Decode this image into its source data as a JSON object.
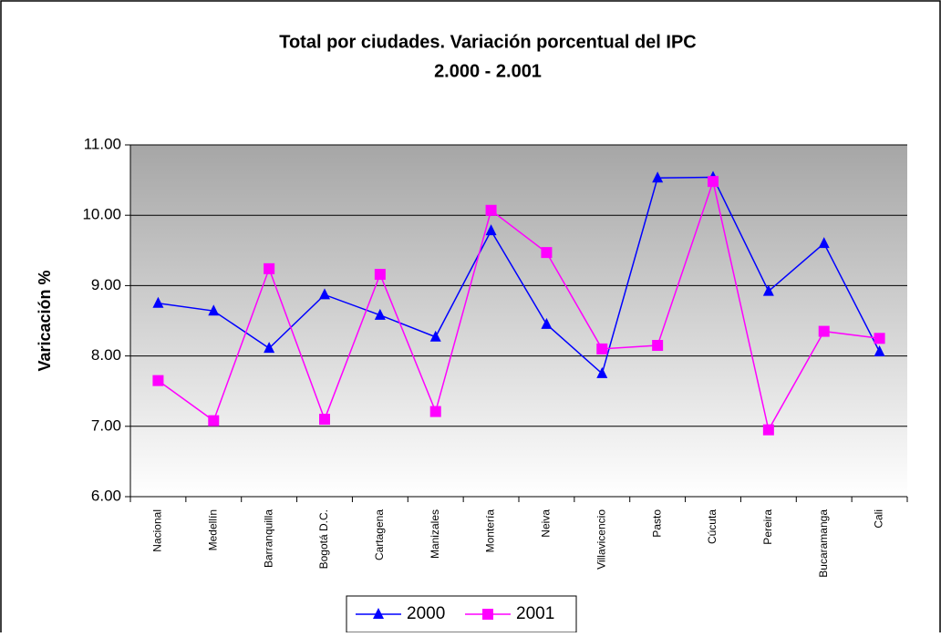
{
  "chart_data": {
    "type": "line",
    "title": "Total por ciudades. Variación porcentual  del IPC",
    "subtitle": "2.000 - 2.001",
    "y_label": "Varicación %",
    "categories": [
      "Nacional",
      "Medellín",
      "Barranquilla",
      "Bogotá D.C.",
      "Cartagena",
      "Manizales",
      "Montería",
      "Neiva",
      "Villavicencio",
      "Pasto",
      "Cúcuta",
      "Pereira",
      "Bucaramanga",
      "Cali"
    ],
    "series": [
      {
        "name": "2000",
        "color": "#0000ff",
        "marker": "triangle",
        "values": [
          8.75,
          8.64,
          8.11,
          8.87,
          8.58,
          8.27,
          9.78,
          8.45,
          7.75,
          10.53,
          10.54,
          8.92,
          9.6,
          8.06
        ]
      },
      {
        "name": "2001",
        "color": "#ff00ff",
        "marker": "square",
        "values": [
          7.65,
          7.08,
          9.24,
          7.1,
          9.16,
          7.21,
          10.07,
          9.47,
          8.1,
          8.15,
          10.48,
          6.95,
          8.35,
          8.25
        ]
      }
    ],
    "ylim": [
      6,
      11
    ],
    "yticks": [
      {
        "value": 6,
        "label": "6.00"
      },
      {
        "value": 7,
        "label": "7.00"
      },
      {
        "value": 8,
        "label": "8.00"
      },
      {
        "value": 9,
        "label": "9.00"
      },
      {
        "value": 10,
        "label": "10.00"
      },
      {
        "value": 11,
        "label": "11.00"
      }
    ],
    "grid": true,
    "legend": "bottom"
  }
}
